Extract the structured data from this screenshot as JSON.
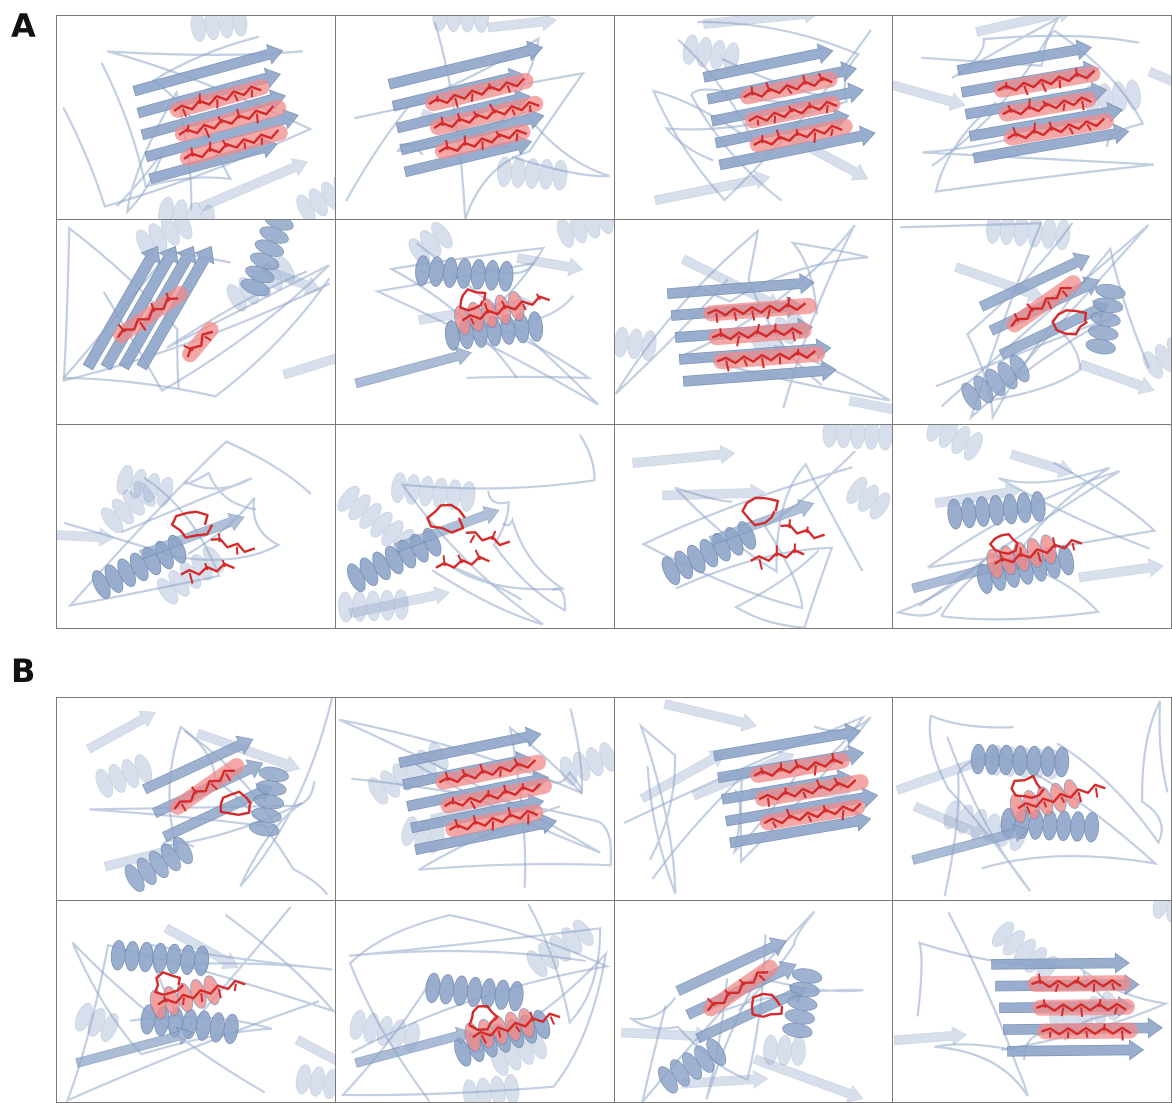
{
  "figure": {
    "panel_a_label": "A",
    "panel_b_label": "B",
    "panel_a": {
      "rows": 3,
      "columns": 4,
      "cells": 12
    },
    "panel_b": {
      "rows": 2,
      "columns": 4,
      "cells": 8
    }
  },
  "colors": {
    "protein_cartoon": "#8fa6c9",
    "protein_cartoon_dark": "#6f87ae",
    "highlight_sticks": "#d42a2a",
    "highlight_glow": "#f08a8a",
    "grid_lines": "#7a7a7a",
    "background": "#ffffff"
  },
  "cell_styles": [
    "strands",
    "strands",
    "strands",
    "strands",
    "helix-sheet",
    "helix",
    "sheet",
    "mixed",
    "loop",
    "loop",
    "loop",
    "helix",
    "mixed",
    "strands",
    "strands",
    "helix",
    "helix",
    "helix",
    "mixed",
    "sheet"
  ]
}
